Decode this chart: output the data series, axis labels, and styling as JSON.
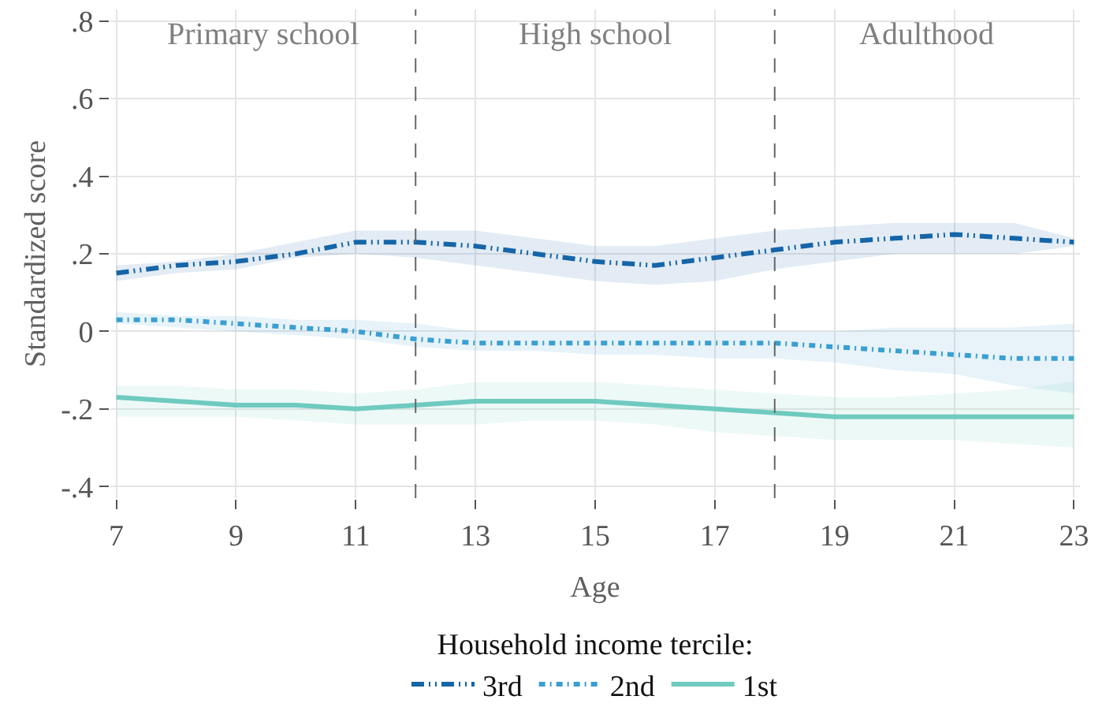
{
  "chart_data": {
    "type": "line",
    "xlabel": "Age",
    "ylabel": "Standardized score",
    "legend_title": "Household income tercile:",
    "x": [
      7,
      8,
      9,
      10,
      11,
      12,
      13,
      14,
      15,
      16,
      17,
      18,
      19,
      20,
      21,
      22,
      23
    ],
    "xlim": [
      6.9,
      23.1
    ],
    "xticks": [
      7,
      9,
      11,
      13,
      15,
      17,
      19,
      21,
      23
    ],
    "ylim": [
      -0.43,
      0.83
    ],
    "yticks": [
      {
        "value": 0.8,
        "label": ".8"
      },
      {
        "value": 0.6,
        "label": ".6"
      },
      {
        "value": 0.4,
        "label": ".4"
      },
      {
        "value": 0.2,
        "label": ".2"
      },
      0,
      {
        "value": -0.2,
        "label": "-.2"
      },
      {
        "value": -0.4,
        "label": "-.4"
      }
    ],
    "grid": true,
    "legend": "bottom",
    "marker": "none",
    "series": [
      {
        "name": "3rd",
        "color": "#1565a8",
        "line_style": "dashed",
        "values": [
          0.15,
          0.17,
          0.18,
          0.2,
          0.23,
          0.23,
          0.22,
          0.2,
          0.18,
          0.17,
          0.19,
          0.21,
          0.23,
          0.24,
          0.25,
          0.24,
          0.23
        ],
        "upper": [
          0.17,
          0.18,
          0.2,
          0.23,
          0.26,
          0.26,
          0.26,
          0.24,
          0.22,
          0.22,
          0.24,
          0.26,
          0.27,
          0.28,
          0.28,
          0.28,
          0.24
        ],
        "lower": [
          0.13,
          0.15,
          0.16,
          0.19,
          0.2,
          0.19,
          0.17,
          0.15,
          0.13,
          0.12,
          0.13,
          0.16,
          0.18,
          0.2,
          0.2,
          0.2,
          0.22
        ]
      },
      {
        "name": "2nd",
        "color": "#3a9fd0",
        "line_style": "dotted",
        "values": [
          0.03,
          0.03,
          0.02,
          0.01,
          0.0,
          -0.02,
          -0.03,
          -0.03,
          -0.03,
          -0.03,
          -0.03,
          -0.03,
          -0.04,
          -0.05,
          -0.06,
          -0.07,
          -0.07
        ],
        "upper": [
          0.05,
          0.04,
          0.04,
          0.03,
          0.03,
          0.02,
          0.0,
          0.0,
          0.0,
          0.0,
          0.0,
          0.0,
          0.0,
          0.01,
          0.01,
          0.01,
          0.02
        ],
        "lower": [
          0.02,
          0.01,
          0.0,
          -0.01,
          -0.02,
          -0.04,
          -0.05,
          -0.05,
          -0.06,
          -0.06,
          -0.07,
          -0.07,
          -0.08,
          -0.1,
          -0.11,
          -0.14,
          -0.16
        ]
      },
      {
        "name": "1st",
        "color": "#6fcabf",
        "line_style": "solid",
        "values": [
          -0.17,
          -0.18,
          -0.19,
          -0.19,
          -0.2,
          -0.19,
          -0.18,
          -0.18,
          -0.18,
          -0.19,
          -0.2,
          -0.21,
          -0.22,
          -0.22,
          -0.22,
          -0.22,
          -0.22
        ],
        "upper": [
          -0.14,
          -0.14,
          -0.15,
          -0.15,
          -0.16,
          -0.15,
          -0.13,
          -0.13,
          -0.13,
          -0.14,
          -0.15,
          -0.16,
          -0.17,
          -0.17,
          -0.16,
          -0.15,
          -0.13
        ],
        "lower": [
          -0.22,
          -0.22,
          -0.22,
          -0.23,
          -0.24,
          -0.24,
          -0.24,
          -0.23,
          -0.23,
          -0.24,
          -0.26,
          -0.27,
          -0.28,
          -0.28,
          -0.28,
          -0.29,
          -0.3
        ]
      }
    ],
    "ref_lines": [
      {
        "axis": "x",
        "value": 12,
        "color": "#666666",
        "line_style": "dashed"
      },
      {
        "axis": "x",
        "value": 18,
        "color": "#666666",
        "line_style": "dashed"
      }
    ],
    "annotations": [
      "Primary school",
      "High school",
      "Adulthood"
    ]
  }
}
